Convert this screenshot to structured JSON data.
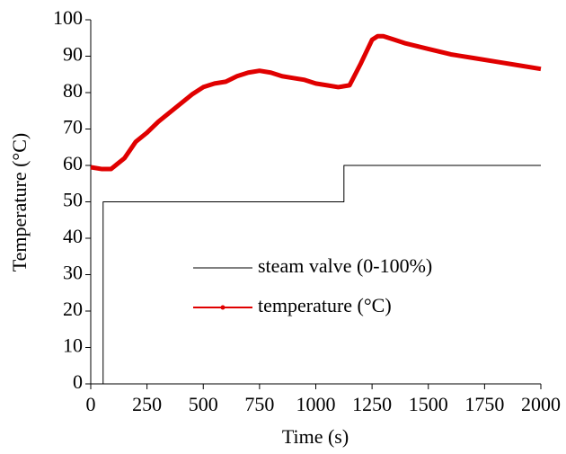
{
  "chart_data": {
    "type": "line",
    "x_label": "Time (s)",
    "y_label": "Temperature (°C)",
    "xlim": [
      0,
      2000
    ],
    "xticks": [
      0,
      250,
      500,
      750,
      1000,
      1250,
      1500,
      1750,
      2000
    ],
    "ylim": [
      0,
      100
    ],
    "yticks": [
      0,
      10,
      20,
      30,
      40,
      50,
      60,
      70,
      80,
      90,
      100
    ],
    "series": [
      {
        "name": "steam valve (0-100%)",
        "color": "#000000",
        "width": 1,
        "x": [
          0,
          55,
          55,
          1125,
          1125,
          2000
        ],
        "values": [
          0,
          0,
          50,
          50,
          60,
          60
        ]
      },
      {
        "name": "temperature (°C)",
        "color": "#e00000",
        "width": 5,
        "x": [
          0,
          50,
          90,
          150,
          200,
          250,
          300,
          350,
          400,
          450,
          500,
          550,
          600,
          650,
          700,
          750,
          800,
          850,
          900,
          950,
          1000,
          1050,
          1100,
          1150,
          1200,
          1250,
          1275,
          1300,
          1350,
          1400,
          1500,
          1600,
          1700,
          1800,
          1900,
          2000
        ],
        "values": [
          59.5,
          59,
          59,
          62,
          66.5,
          69,
          72,
          74.5,
          77,
          79.5,
          81.5,
          82.5,
          83,
          84.5,
          85.5,
          86,
          85.5,
          84.5,
          84,
          83.5,
          82.5,
          82,
          81.5,
          82,
          88,
          94.5,
          95.5,
          95.5,
          94.5,
          93.5,
          92,
          90.5,
          89.5,
          88.5,
          87.5,
          86.5
        ]
      }
    ],
    "legend": "center"
  }
}
